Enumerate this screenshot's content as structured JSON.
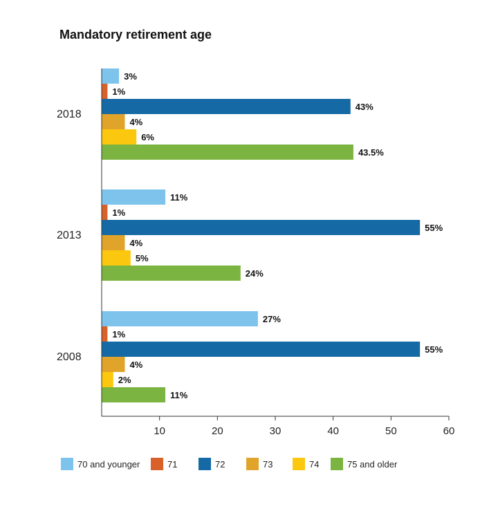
{
  "chart_data": {
    "type": "bar",
    "orientation": "horizontal",
    "title": "Mandatory retirement age",
    "categories": [
      "2018",
      "2013",
      "2008"
    ],
    "series": [
      {
        "name": "70 and younger",
        "color": "#7ec3ec",
        "values": [
          3,
          11,
          27
        ],
        "labels": [
          "3%",
          "11%",
          "27%"
        ]
      },
      {
        "name": "71",
        "color": "#d8612a",
        "values": [
          1,
          1,
          1
        ],
        "labels": [
          "1%",
          "1%",
          "1%"
        ]
      },
      {
        "name": "72",
        "color": "#1569a4",
        "values": [
          43,
          55,
          55
        ],
        "labels": [
          "43%",
          "55%",
          "55%"
        ]
      },
      {
        "name": "73",
        "color": "#e0a42a",
        "values": [
          4,
          4,
          4
        ],
        "labels": [
          "4%",
          "4%",
          "4%"
        ]
      },
      {
        "name": "74",
        "color": "#fcc70f",
        "values": [
          6,
          5,
          2
        ],
        "labels": [
          "6%",
          "5%",
          "2%"
        ]
      },
      {
        "name": "75 and older",
        "color": "#7cb442",
        "values": [
          43.5,
          24,
          11
        ],
        "labels": [
          "43.5%",
          "24%",
          "11%"
        ]
      }
    ],
    "xlim": [
      0,
      60
    ],
    "xticks": [
      10,
      20,
      30,
      40,
      50,
      60
    ],
    "grid": false,
    "legend_position": "bottom"
  }
}
